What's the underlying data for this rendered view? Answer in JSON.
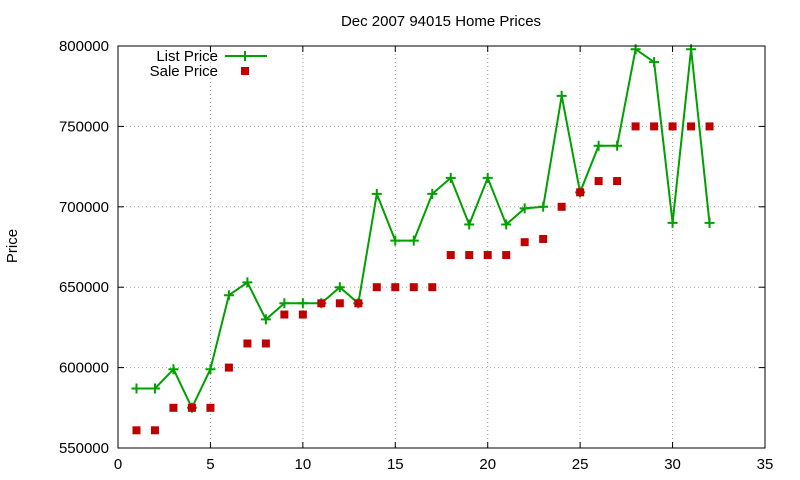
{
  "chart_data": {
    "type": "line",
    "title": "Dec 2007 94015 Home Prices",
    "xlabel": "",
    "ylabel": "Price",
    "xlim": [
      0,
      35
    ],
    "ylim": [
      550000,
      800000
    ],
    "xticks": [
      0,
      5,
      10,
      15,
      20,
      25,
      30,
      35
    ],
    "yticks": [
      550000,
      600000,
      650000,
      700000,
      750000,
      800000
    ],
    "grid": true,
    "legend_position": "top-left",
    "series": [
      {
        "name": "List Price",
        "style": "line+cross",
        "color": "#00a000",
        "x": [
          1,
          2,
          3,
          4,
          5,
          6,
          7,
          8,
          9,
          10,
          11,
          12,
          13,
          14,
          15,
          16,
          17,
          18,
          19,
          20,
          21,
          22,
          23,
          24,
          25,
          26,
          27,
          28,
          29,
          30,
          31,
          32
        ],
        "values": [
          587000,
          587000,
          599000,
          575000,
          599000,
          645000,
          653000,
          630000,
          640000,
          640000,
          640000,
          650000,
          640000,
          708000,
          679000,
          679000,
          708000,
          718000,
          689000,
          718000,
          689000,
          699000,
          700000,
          769000,
          709000,
          738000,
          738000,
          798000,
          790000,
          690000,
          798000,
          690000
        ]
      },
      {
        "name": "Sale Price",
        "style": "square",
        "color": "#c00000",
        "x": [
          1,
          2,
          3,
          4,
          5,
          6,
          7,
          8,
          9,
          10,
          11,
          12,
          13,
          14,
          15,
          16,
          17,
          18,
          19,
          20,
          21,
          22,
          23,
          24,
          25,
          26,
          27,
          28,
          29,
          30,
          31,
          32
        ],
        "values": [
          561000,
          561000,
          575000,
          575000,
          575000,
          600000,
          615000,
          615000,
          633000,
          633000,
          640000,
          640000,
          640000,
          650000,
          650000,
          650000,
          650000,
          670000,
          670000,
          670000,
          670000,
          678000,
          680000,
          700000,
          709000,
          716000,
          716000,
          750000,
          750000,
          750000,
          750000,
          750000
        ]
      }
    ]
  }
}
